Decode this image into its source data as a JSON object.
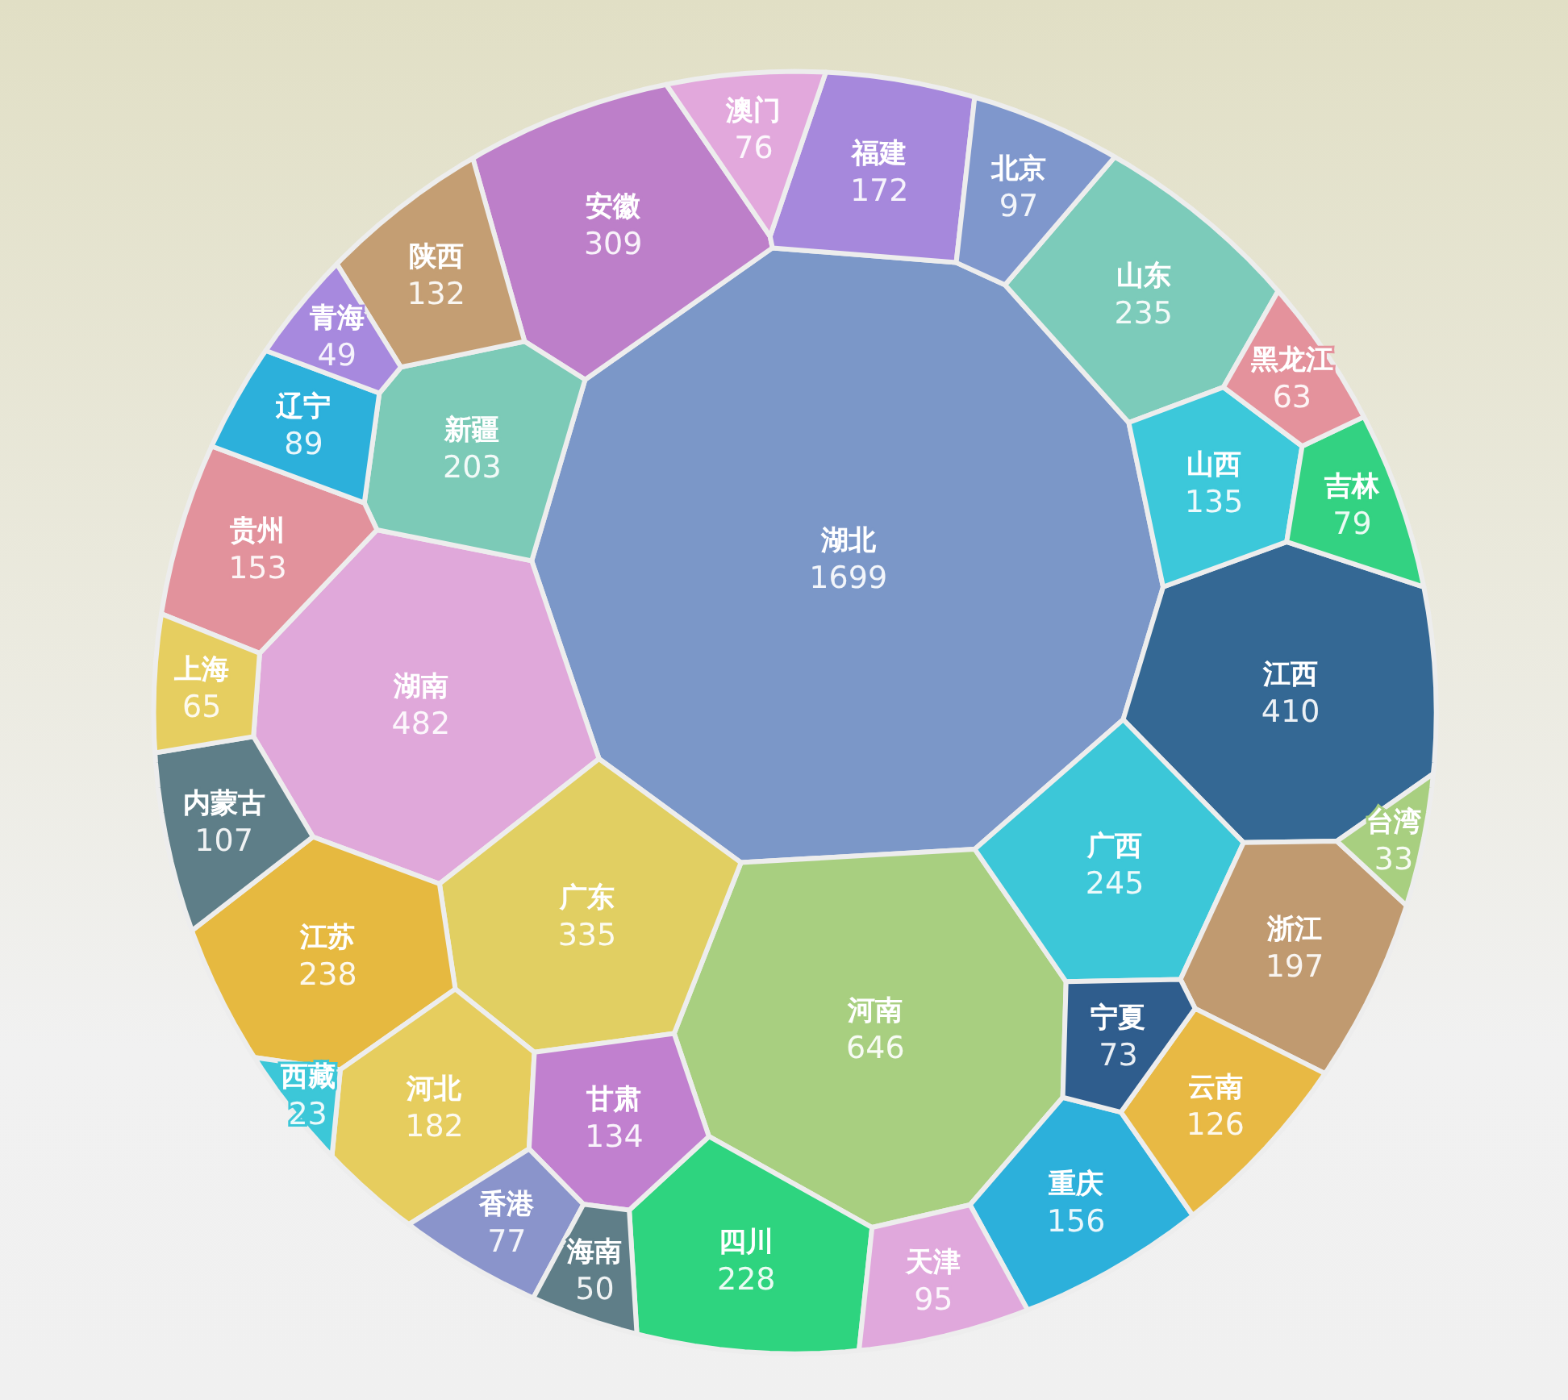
{
  "chart_data": {
    "type": "other",
    "categories": [
      "湖北",
      "河南",
      "湖南",
      "江西",
      "广东",
      "安徽",
      "广西",
      "江苏",
      "山东",
      "四川",
      "新疆",
      "浙江",
      "河北",
      "福建",
      "重庆",
      "贵州",
      "山西",
      "甘肃",
      "陕西",
      "云南",
      "内蒙古",
      "北京",
      "天津",
      "辽宁",
      "吉林",
      "香港",
      "澳门",
      "宁夏",
      "上海",
      "黑龙江",
      "海南",
      "青海",
      "台湾",
      "西藏"
    ],
    "values": [
      1699,
      646,
      482,
      410,
      335,
      309,
      245,
      238,
      235,
      228,
      203,
      197,
      182,
      172,
      156,
      153,
      135,
      134,
      132,
      126,
      107,
      97,
      95,
      89,
      79,
      77,
      76,
      73,
      65,
      63,
      50,
      49,
      33,
      23
    ],
    "colors": [
      "#7b97c8",
      "#a8cf80",
      "#e0a8da",
      "#346894",
      "#e1cf62",
      "#bd7fc9",
      "#3cc7d8",
      "#e6b940",
      "#7ccbba",
      "#2ed47f",
      "#7ccab7",
      "#c09a70",
      "#e6cd5e",
      "#a688dc",
      "#2cb0db",
      "#e2929c",
      "#3cc8da",
      "#c180cf",
      "#c49e73",
      "#e8b944",
      "#5e7e88",
      "#7f97cc",
      "#e0a8dc",
      "#2cb0db",
      "#33d282",
      "#8a94cb",
      "#e2a8dc",
      "#2f5d8d",
      "#e6ce60",
      "#e4929c",
      "#5f7e88",
      "#a789de",
      "#a8cf80",
      "#3cc7d8"
    ],
    "data_labels": true
  }
}
